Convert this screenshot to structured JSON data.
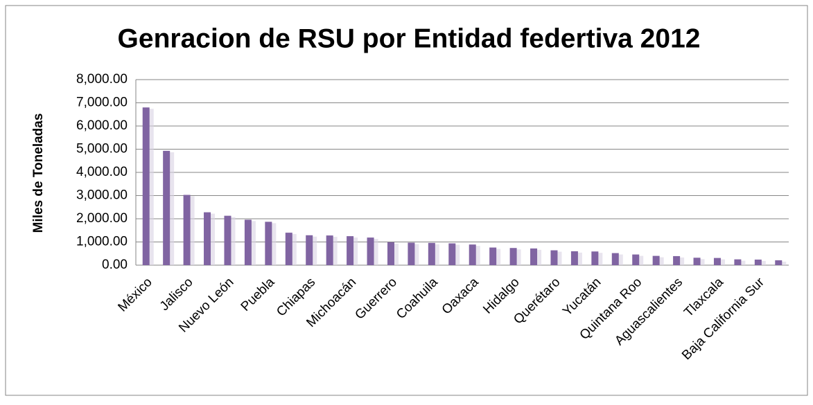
{
  "chart_data": {
    "type": "bar",
    "title": "Genracion de RSU por Entidad federtiva 2012",
    "ylabel": "Miles de Toneladas",
    "categories": [
      "México",
      null,
      "Jalisco",
      null,
      "Nuevo León",
      null,
      "Puebla",
      null,
      "Chiapas",
      null,
      "Michoacán",
      null,
      "Guerrero",
      null,
      "Coahuila",
      null,
      "Oaxaca",
      null,
      "Hidalgo",
      null,
      "Querétaro",
      null,
      "Yucatán",
      null,
      "Quintana Roo",
      null,
      "Aguascalientes",
      null,
      "Tlaxcala",
      null,
      "Baja California Sur",
      null
    ],
    "values": [
      6800,
      4930,
      3030,
      2280,
      2130,
      1960,
      1870,
      1400,
      1290,
      1280,
      1250,
      1190,
      990,
      970,
      960,
      940,
      890,
      760,
      740,
      720,
      640,
      600,
      590,
      520,
      460,
      400,
      390,
      320,
      310,
      250,
      240,
      210
    ],
    "color": "#8064a2",
    "ylim": [
      0,
      8000
    ],
    "yticks": [
      {
        "value": 0,
        "label": "0.00"
      },
      {
        "value": 1000,
        "label": "1,000.00"
      },
      {
        "value": 2000,
        "label": "2,000.00"
      },
      {
        "value": 3000,
        "label": "3,000.00"
      },
      {
        "value": 4000,
        "label": "4,000.00"
      },
      {
        "value": 5000,
        "label": "5,000.00"
      },
      {
        "value": 6000,
        "label": "6,000.00"
      },
      {
        "value": 7000,
        "label": "7,000.00"
      },
      {
        "value": 8000,
        "label": "8,000.00"
      }
    ],
    "grid": true
  }
}
